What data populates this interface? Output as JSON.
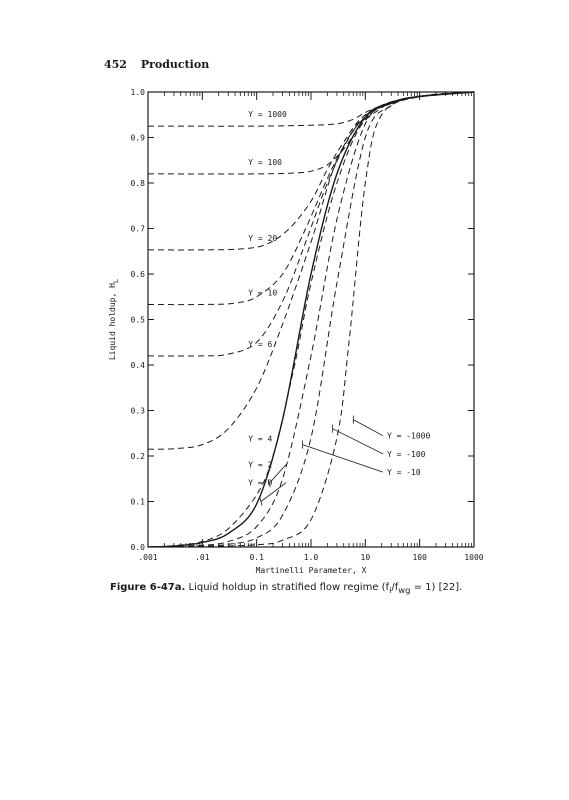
{
  "page": {
    "number": "452",
    "running_title": "Production"
  },
  "caption": {
    "figure": "Figure 6-47a.",
    "text_before": " Liquid holdup in stratified flow regime (f",
    "sub1": "i",
    "mid": "/f",
    "sub2": "wg",
    "text_after": " = 1) [22]."
  },
  "chart_data": {
    "type": "line",
    "title": "",
    "xlabel": "Martinelli Parameter, X",
    "ylabel": "Liquid holdup, H",
    "ylabel_sub": "L",
    "x_scale": "log",
    "xlim": [
      0.001,
      1000
    ],
    "ylim": [
      0.0,
      1.0
    ],
    "x_ticks": [
      0.001,
      0.01,
      0.1,
      1,
      10,
      100,
      1000
    ],
    "x_tick_labels": [
      ".001",
      ".01",
      "0.1",
      "1.0",
      "10",
      "100",
      "1000"
    ],
    "y_ticks": [
      0.0,
      0.1,
      0.2,
      0.3,
      0.4,
      0.5,
      0.6,
      0.7,
      0.8,
      0.9,
      1.0
    ],
    "y_tick_labels": [
      "0.0",
      "0.1",
      "0.2",
      "0.3",
      "0.4",
      "0.5",
      "0.6",
      "0.7",
      "0.8",
      "0.9",
      "1.0"
    ],
    "grid": false,
    "series": [
      {
        "name": "Y = 1000",
        "style": "dashed",
        "x": [
          0.001,
          0.1,
          1,
          3,
          6,
          10,
          20,
          50,
          100,
          1000
        ],
        "y": [
          0.925,
          0.925,
          0.927,
          0.93,
          0.94,
          0.955,
          0.97,
          0.985,
          0.99,
          1.0
        ]
      },
      {
        "name": "Y = 100",
        "style": "dashed",
        "x": [
          0.001,
          0.1,
          0.5,
          1,
          2,
          4,
          8,
          15,
          50,
          1000
        ],
        "y": [
          0.82,
          0.82,
          0.822,
          0.826,
          0.84,
          0.875,
          0.925,
          0.955,
          0.985,
          1.0
        ]
      },
      {
        "name": "Y = 20",
        "style": "dashed",
        "x": [
          0.001,
          0.01,
          0.05,
          0.15,
          0.4,
          1,
          2,
          4,
          10,
          50,
          1000
        ],
        "y": [
          0.653,
          0.653,
          0.655,
          0.665,
          0.7,
          0.76,
          0.83,
          0.89,
          0.95,
          0.985,
          1.0
        ]
      },
      {
        "name": "Y = 10",
        "style": "dashed",
        "x": [
          0.001,
          0.01,
          0.04,
          0.1,
          0.3,
          0.8,
          2,
          4,
          10,
          50,
          1000
        ],
        "y": [
          0.533,
          0.533,
          0.536,
          0.55,
          0.6,
          0.7,
          0.81,
          0.88,
          0.945,
          0.985,
          1.0
        ]
      },
      {
        "name": "Y = 6",
        "style": "dashed",
        "x": [
          0.001,
          0.01,
          0.03,
          0.1,
          0.3,
          0.8,
          2,
          5,
          10,
          50,
          1000
        ],
        "y": [
          0.42,
          0.42,
          0.424,
          0.45,
          0.54,
          0.67,
          0.8,
          0.9,
          0.945,
          0.985,
          1.0
        ]
      },
      {
        "name": "Y = 4",
        "style": "dashed",
        "x": [
          0.001,
          0.003,
          0.01,
          0.03,
          0.1,
          0.3,
          1,
          3,
          10,
          50,
          1000
        ],
        "y": [
          0.215,
          0.216,
          0.225,
          0.26,
          0.35,
          0.49,
          0.67,
          0.85,
          0.945,
          0.985,
          1.0
        ]
      },
      {
        "name": "Y = 2",
        "style": "dashed",
        "x": [
          0.001,
          0.003,
          0.01,
          0.03,
          0.1,
          0.2,
          0.5,
          1,
          3,
          10,
          50,
          1000
        ],
        "y": [
          0.0,
          0.003,
          0.012,
          0.04,
          0.115,
          0.2,
          0.4,
          0.58,
          0.8,
          0.94,
          0.985,
          1.0
        ]
      },
      {
        "name": "Y = 0",
        "style": "solid",
        "x": [
          0.001,
          0.003,
          0.01,
          0.03,
          0.1,
          0.3,
          1,
          3,
          10,
          30,
          100,
          1000
        ],
        "y": [
          0.0,
          0.002,
          0.01,
          0.03,
          0.095,
          0.28,
          0.6,
          0.82,
          0.945,
          0.975,
          0.99,
          1.0
        ]
      },
      {
        "name": "Y = -10",
        "style": "dashed",
        "x": [
          0.001,
          0.01,
          0.03,
          0.1,
          0.3,
          1,
          3,
          10,
          30,
          100,
          1000
        ],
        "y": [
          0.0,
          0.004,
          0.012,
          0.045,
          0.15,
          0.42,
          0.72,
          0.93,
          0.975,
          0.99,
          1.0
        ]
      },
      {
        "name": "Y = -100",
        "style": "dashed",
        "x": [
          0.001,
          0.01,
          0.03,
          0.1,
          0.3,
          1,
          3,
          10,
          30,
          100,
          1000
        ],
        "y": [
          0.0,
          0.002,
          0.006,
          0.02,
          0.07,
          0.24,
          0.58,
          0.9,
          0.97,
          0.99,
          1.0
        ]
      },
      {
        "name": "Y = -1000",
        "style": "dashed",
        "x": [
          0.001,
          0.01,
          0.1,
          0.3,
          1,
          3,
          5,
          10,
          20,
          100,
          1000
        ],
        "y": [
          0.0,
          0.001,
          0.005,
          0.015,
          0.06,
          0.24,
          0.45,
          0.8,
          0.95,
          0.99,
          1.0
        ]
      }
    ],
    "annotations": [
      {
        "text": "Y = 1000",
        "label_x": 0.07,
        "label_y": 0.945,
        "target_x": null,
        "target_y": null
      },
      {
        "text": "Y = 100",
        "label_x": 0.07,
        "label_y": 0.84,
        "target_x": null,
        "target_y": null
      },
      {
        "text": "Y = 20",
        "label_x": 0.07,
        "label_y": 0.672,
        "target_x": null,
        "target_y": null
      },
      {
        "text": "Y = 10",
        "label_x": 0.07,
        "label_y": 0.553,
        "target_x": null,
        "target_y": null
      },
      {
        "text": "Y = 6",
        "label_x": 0.07,
        "label_y": 0.44,
        "target_x": null,
        "target_y": null
      },
      {
        "text": "Y = 4",
        "label_x": 0.07,
        "label_y": 0.232,
        "target_x": null,
        "target_y": null
      },
      {
        "text": "Y = 2",
        "label_x": 0.07,
        "label_y": 0.175,
        "target_x": 0.17,
        "target_y": 0.14
      },
      {
        "text": "Y = 0",
        "label_x": 0.07,
        "label_y": 0.135,
        "target_x": 0.12,
        "target_y": 0.1
      },
      {
        "text": "Y = -10",
        "label_x": 25,
        "label_y": 0.158,
        "target_x": 0.7,
        "target_y": 0.225
      },
      {
        "text": "Y = -100",
        "label_x": 25,
        "label_y": 0.198,
        "target_x": 2.5,
        "target_y": 0.26
      },
      {
        "text": "Y = -1000",
        "label_x": 25,
        "label_y": 0.238,
        "target_x": 6,
        "target_y": 0.28
      }
    ]
  }
}
